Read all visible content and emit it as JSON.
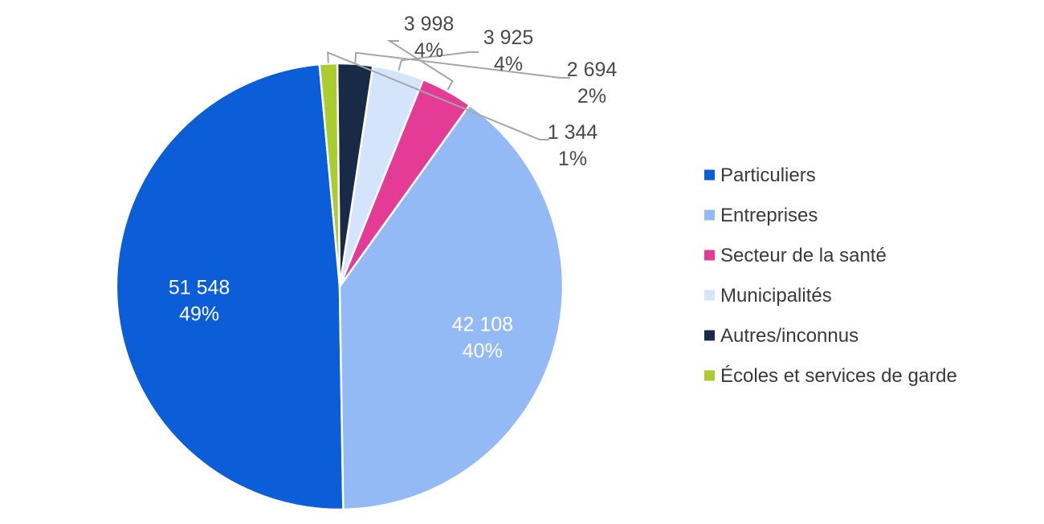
{
  "chart_data": {
    "type": "pie",
    "title": "",
    "start_angle_deg": -5.2,
    "direction": "counterclockwise",
    "legend_position": "right",
    "slices": [
      {
        "name": "Particuliers",
        "value": 51548,
        "value_label": "51 548",
        "pct_label": "49%",
        "color": "#0b5ed7"
      },
      {
        "name": "Entreprises",
        "value": 42108,
        "value_label": "42 108",
        "pct_label": "40%",
        "color": "#94baf5"
      },
      {
        "name": "Secteur de la santé",
        "value": 3998,
        "value_label": "3 998",
        "pct_label": "4%",
        "color": "#e33b96"
      },
      {
        "name": "Municipalités",
        "value": 3925,
        "value_label": "3 925",
        "pct_label": "4%",
        "color": "#d4e4fb"
      },
      {
        "name": "Autres/inconnus",
        "value": 2694,
        "value_label": "2 694",
        "pct_label": "2%",
        "color": "#182a46"
      },
      {
        "name": "Écoles et services de garde",
        "value": 1344,
        "value_label": "1 344",
        "pct_label": "1%",
        "color": "#a9cd2e"
      }
    ]
  }
}
